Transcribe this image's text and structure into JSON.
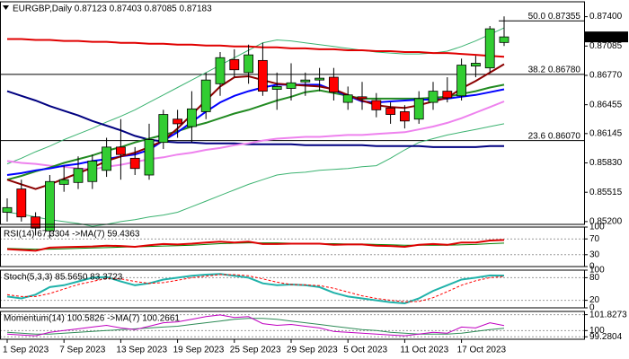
{
  "chart_data": [
    {
      "type": "candlestick",
      "title": "EURGBP,Daily 0.87123 0.87403 0.87085 0.87183",
      "categories": [
        "1 Sep 2023",
        null,
        null,
        null,
        "7 Sep 2023",
        null,
        null,
        null,
        "13 Sep 2023",
        null,
        null,
        null,
        "19 Sep 2023",
        null,
        null,
        null,
        "25 Sep 2023",
        null,
        null,
        null,
        "29 Sep 2023",
        null,
        null,
        null,
        "5 Oct 2023",
        null,
        null,
        null,
        "11 Oct 2023",
        null,
        null,
        null,
        "17 Oct 2023",
        null,
        null,
        null
      ],
      "open": [
        0.853,
        0.8555,
        0.8525,
        0.851,
        0.856,
        0.8562,
        0.8563,
        0.8575,
        0.86,
        0.8588,
        0.857,
        0.8605,
        0.863,
        0.8622,
        0.8638,
        0.8668,
        0.8694,
        0.868,
        0.8693,
        0.8662,
        0.8663,
        0.867,
        0.8672,
        0.8675,
        0.8648,
        0.8654,
        0.865,
        0.8642,
        0.8638,
        0.863,
        0.8648,
        0.866,
        0.8655,
        0.8687,
        0.8685,
        0.87123
      ],
      "high": [
        0.8545,
        0.8565,
        0.853,
        0.857,
        0.858,
        0.859,
        0.8592,
        0.861,
        0.863,
        0.86,
        0.8625,
        0.864,
        0.864,
        0.866,
        0.868,
        0.8702,
        0.8705,
        0.871,
        0.8712,
        0.868,
        0.869,
        0.868,
        0.8685,
        0.8685,
        0.8665,
        0.867,
        0.8658,
        0.8648,
        0.8645,
        0.866,
        0.867,
        0.8675,
        0.8695,
        0.8698,
        0.873,
        0.87403
      ],
      "low": [
        0.852,
        0.852,
        0.8505,
        0.8502,
        0.8552,
        0.8555,
        0.8555,
        0.8568,
        0.8565,
        0.857,
        0.8565,
        0.8598,
        0.861,
        0.8605,
        0.863,
        0.8655,
        0.8675,
        0.8668,
        0.8655,
        0.864,
        0.865,
        0.8655,
        0.866,
        0.865,
        0.864,
        0.864,
        0.8632,
        0.8625,
        0.862,
        0.8625,
        0.864,
        0.8648,
        0.865,
        0.8675,
        0.868,
        0.87085
      ],
      "close": [
        0.8535,
        0.8525,
        0.8513,
        0.8563,
        0.8565,
        0.8577,
        0.8585,
        0.86,
        0.8592,
        0.8577,
        0.8608,
        0.8635,
        0.8625,
        0.8641,
        0.8672,
        0.8696,
        0.8683,
        0.8699,
        0.866,
        0.8665,
        0.8669,
        0.8672,
        0.8674,
        0.8659,
        0.8656,
        0.8652,
        0.864,
        0.8635,
        0.8628,
        0.8652,
        0.866,
        0.8653,
        0.8688,
        0.869,
        0.8727,
        0.87183
      ],
      "up_color": "#32cd32",
      "down_color": "#ff0000",
      "series": [
        {
          "color": "#3cb371",
          "width": 1,
          "values": [
            0.8582,
            0.8588,
            0.8595,
            0.8601,
            0.8608,
            0.8614,
            0.862,
            0.8627,
            0.8633,
            0.864,
            0.8648,
            0.8656,
            0.8664,
            0.8672,
            0.868,
            0.8688,
            0.8696,
            0.8704,
            0.8712,
            0.8715,
            0.8714,
            0.8712,
            0.871,
            0.8708,
            0.8706,
            0.8704,
            0.8702,
            0.8701,
            0.87,
            0.87,
            0.8701,
            0.8703,
            0.8708,
            0.8714,
            0.8721,
            0.8728
          ]
        },
        {
          "color": "#3cb371",
          "width": 1,
          "values": [
            0.853,
            0.8528,
            0.8525,
            0.8522,
            0.852,
            0.8518,
            0.8515,
            0.8517,
            0.852,
            0.8522,
            0.8525,
            0.8527,
            0.853,
            0.8536,
            0.8542,
            0.8548,
            0.8554,
            0.856,
            0.8565,
            0.857,
            0.8572,
            0.8573,
            0.8575,
            0.8576,
            0.8577,
            0.8579,
            0.858,
            0.8588,
            0.8597,
            0.8605,
            0.8609,
            0.8613,
            0.8616,
            0.8619,
            0.8622,
            0.8625
          ]
        },
        {
          "color": "#e00000",
          "width": 2,
          "values": [
            0.8716,
            0.8716,
            0.8715,
            0.8715,
            0.8714,
            0.8714,
            0.8713,
            0.8713,
            0.8712,
            0.8712,
            0.8711,
            0.8711,
            0.871,
            0.871,
            0.8709,
            0.8709,
            0.8708,
            0.8708,
            0.8707,
            0.8707,
            0.8706,
            0.8706,
            0.8705,
            0.8705,
            0.8704,
            0.8704,
            0.8703,
            0.8703,
            0.8702,
            0.8702,
            0.8701,
            0.8701,
            0.87,
            0.8699,
            0.8698,
            0.8697
          ]
        },
        {
          "color": "#000080",
          "width": 2,
          "values": [
            0.866,
            0.8655,
            0.865,
            0.8644,
            0.8639,
            0.8634,
            0.8628,
            0.8623,
            0.8618,
            0.8612,
            0.8608,
            0.8606,
            0.8605,
            0.8605,
            0.8604,
            0.8604,
            0.8604,
            0.8603,
            0.8603,
            0.8603,
            0.8603,
            0.8602,
            0.8602,
            0.8602,
            0.8602,
            0.8602,
            0.8601,
            0.8601,
            0.8601,
            0.8601,
            0.86,
            0.86,
            0.86,
            0.86,
            0.8601,
            0.8601
          ]
        },
        {
          "color": "#ee82ee",
          "width": 2,
          "values": [
            0.8585,
            0.8583,
            0.8582,
            0.858,
            0.8579,
            0.8577,
            0.8576,
            0.8579,
            0.8581,
            0.8584,
            0.8587,
            0.8589,
            0.8592,
            0.8594,
            0.8597,
            0.8599,
            0.8602,
            0.8604,
            0.8607,
            0.8609,
            0.861,
            0.8611,
            0.8611,
            0.8612,
            0.8613,
            0.8613,
            0.8614,
            0.8615,
            0.8616,
            0.8619,
            0.8622,
            0.8626,
            0.8631,
            0.8637,
            0.8643,
            0.8649
          ]
        },
        {
          "color": "#228b22",
          "width": 2,
          "values": [
            0.8565,
            0.8569,
            0.8574,
            0.8578,
            0.8583,
            0.8587,
            0.8591,
            0.8596,
            0.86,
            0.8605,
            0.8609,
            0.8613,
            0.8617,
            0.8622,
            0.8626,
            0.8631,
            0.8636,
            0.864,
            0.8645,
            0.865,
            0.8654,
            0.8659,
            0.8661,
            0.8658,
            0.8655,
            0.8652,
            0.8652,
            0.8652,
            0.8652,
            0.8652,
            0.8653,
            0.8654,
            0.8657,
            0.866,
            0.8664,
            0.8667
          ]
        },
        {
          "color": "#0000ff",
          "width": 2,
          "values": [
            0.857,
            0.8572,
            0.8575,
            0.8577,
            0.858,
            0.8582,
            0.8585,
            0.8587,
            0.859,
            0.8592,
            0.8597,
            0.8607,
            0.8616,
            0.8627,
            0.8638,
            0.8648,
            0.8655,
            0.866,
            0.8664,
            0.8667,
            0.8667,
            0.8667,
            0.8667,
            0.8661,
            0.8655,
            0.8649,
            0.8648,
            0.8649,
            0.865,
            0.8651,
            0.8651,
            0.8652,
            0.8654,
            0.8656,
            0.8659,
            0.8662
          ]
        },
        {
          "color": "#8b0000",
          "width": 2,
          "values": [
            0.8565,
            0.856,
            0.8555,
            0.856,
            0.8566,
            0.8572,
            0.8578,
            0.8585,
            0.859,
            0.8594,
            0.86,
            0.8607,
            0.862,
            0.8635,
            0.865,
            0.8665,
            0.8675,
            0.8676,
            0.8672,
            0.8668,
            0.8667,
            0.8666,
            0.8665,
            0.8662,
            0.8656,
            0.865,
            0.8645,
            0.8643,
            0.8642,
            0.8645,
            0.8649,
            0.8653,
            0.8663,
            0.8671,
            0.868,
            0.8689
          ]
        }
      ],
      "ylim": [
        0.8517,
        0.8756
      ],
      "yticks": [
        {
          "value": 0.874,
          "label": "0.87400"
        },
        {
          "value": 0.87085,
          "label": "0.87085"
        },
        {
          "value": 0.8677,
          "label": "0.86770"
        },
        {
          "value": 0.86455,
          "label": "0.86455"
        },
        {
          "value": 0.86145,
          "label": "0.86145"
        },
        {
          "value": 0.8583,
          "label": "0.85830"
        },
        {
          "value": 0.85515,
          "label": "0.85515"
        },
        {
          "value": 0.852,
          "label": "0.85200"
        }
      ],
      "levels": [
        {
          "value": 0.87355,
          "label": "50.0 0.87355"
        },
        {
          "value": 0.8678,
          "label": "38.2 0.86780"
        },
        {
          "value": 0.8607,
          "label": "23.6 0.86070"
        }
      ],
      "last_price": {
        "value": 0.87183,
        "label": "0.87183"
      }
    },
    {
      "type": "line",
      "title": "RSI(14) 67.3304 ->MA(7) 59.4363",
      "series": [
        {
          "color": "#008000",
          "width": 1,
          "values": [
            46,
            45,
            44,
            44,
            45,
            46,
            47,
            48,
            49,
            50,
            51,
            52,
            53,
            54,
            56,
            58,
            59,
            60,
            60,
            60,
            59,
            59,
            58,
            58,
            57,
            57,
            56,
            55,
            54,
            54,
            54,
            54,
            55,
            56,
            58,
            59.4
          ]
        },
        {
          "color": "#dd0000",
          "width": 2,
          "values": [
            44,
            42,
            40,
            48,
            49,
            50,
            51,
            53,
            52,
            50,
            54,
            57,
            56,
            58,
            61,
            63,
            61,
            63,
            57,
            57,
            58,
            58,
            58,
            55,
            56,
            56,
            53,
            52,
            50,
            55,
            57,
            55,
            61,
            61,
            66,
            67.3
          ]
        }
      ],
      "ylim": [
        0,
        100
      ],
      "yticks": [
        100,
        70,
        30,
        0
      ],
      "grid": true
    },
    {
      "type": "line",
      "title": "Stoch(5,3,3) 85.5650 83.3723",
      "series": [
        {
          "color": "#20b2aa",
          "width": 2,
          "values": [
            30,
            25,
            35,
            55,
            60,
            70,
            80,
            82,
            70,
            60,
            65,
            75,
            80,
            85,
            88,
            90,
            85,
            80,
            65,
            60,
            62,
            60,
            55,
            40,
            30,
            25,
            20,
            15,
            12,
            25,
            45,
            60,
            75,
            80,
            86,
            85.6
          ]
        },
        {
          "color": "#ff0000",
          "width": 1,
          "dashed": true,
          "values": [
            35,
            30,
            30,
            38,
            50,
            62,
            70,
            78,
            77,
            70,
            65,
            67,
            73,
            80,
            84,
            88,
            88,
            85,
            77,
            68,
            62,
            61,
            59,
            52,
            42,
            32,
            25,
            20,
            16,
            17,
            27,
            43,
            60,
            72,
            80,
            83.4
          ]
        }
      ],
      "ylim": [
        0,
        100
      ],
      "yticks": [
        100,
        80,
        20,
        0
      ],
      "grid": true
    },
    {
      "type": "line",
      "title": "Momentum(14) 100.5826 ->MA(7) 100.2661",
      "series": [
        {
          "color": "#2e8b57",
          "width": 1,
          "values": [
            99.8,
            99.7,
            99.6,
            99.6,
            99.7,
            99.8,
            99.9,
            100.0,
            100.1,
            100.2,
            100.3,
            100.4,
            100.5,
            100.7,
            100.9,
            101.1,
            101.3,
            101.4,
            101.4,
            101.3,
            101.1,
            100.9,
            100.7,
            100.5,
            100.3,
            100.1,
            100.0,
            99.8,
            99.7,
            99.6,
            99.6,
            99.6,
            99.7,
            99.9,
            100.1,
            100.27
          ]
        },
        {
          "color": "#c000c0",
          "width": 1,
          "values": [
            99.6,
            99.5,
            99.4,
            99.8,
            100.0,
            100.2,
            100.4,
            100.6,
            100.3,
            100.1,
            100.5,
            100.9,
            101.0,
            101.3,
            101.6,
            101.8,
            101.5,
            101.6,
            100.8,
            100.6,
            100.7,
            100.5,
            100.3,
            99.9,
            99.8,
            99.7,
            99.6,
            99.5,
            99.4,
            99.6,
            99.8,
            99.7,
            100.4,
            100.3,
            100.9,
            100.58
          ]
        }
      ],
      "ylim": [
        99.0,
        102.2
      ],
      "yticks": [
        101.8273,
        100,
        99.2804
      ],
      "grid": true
    }
  ]
}
